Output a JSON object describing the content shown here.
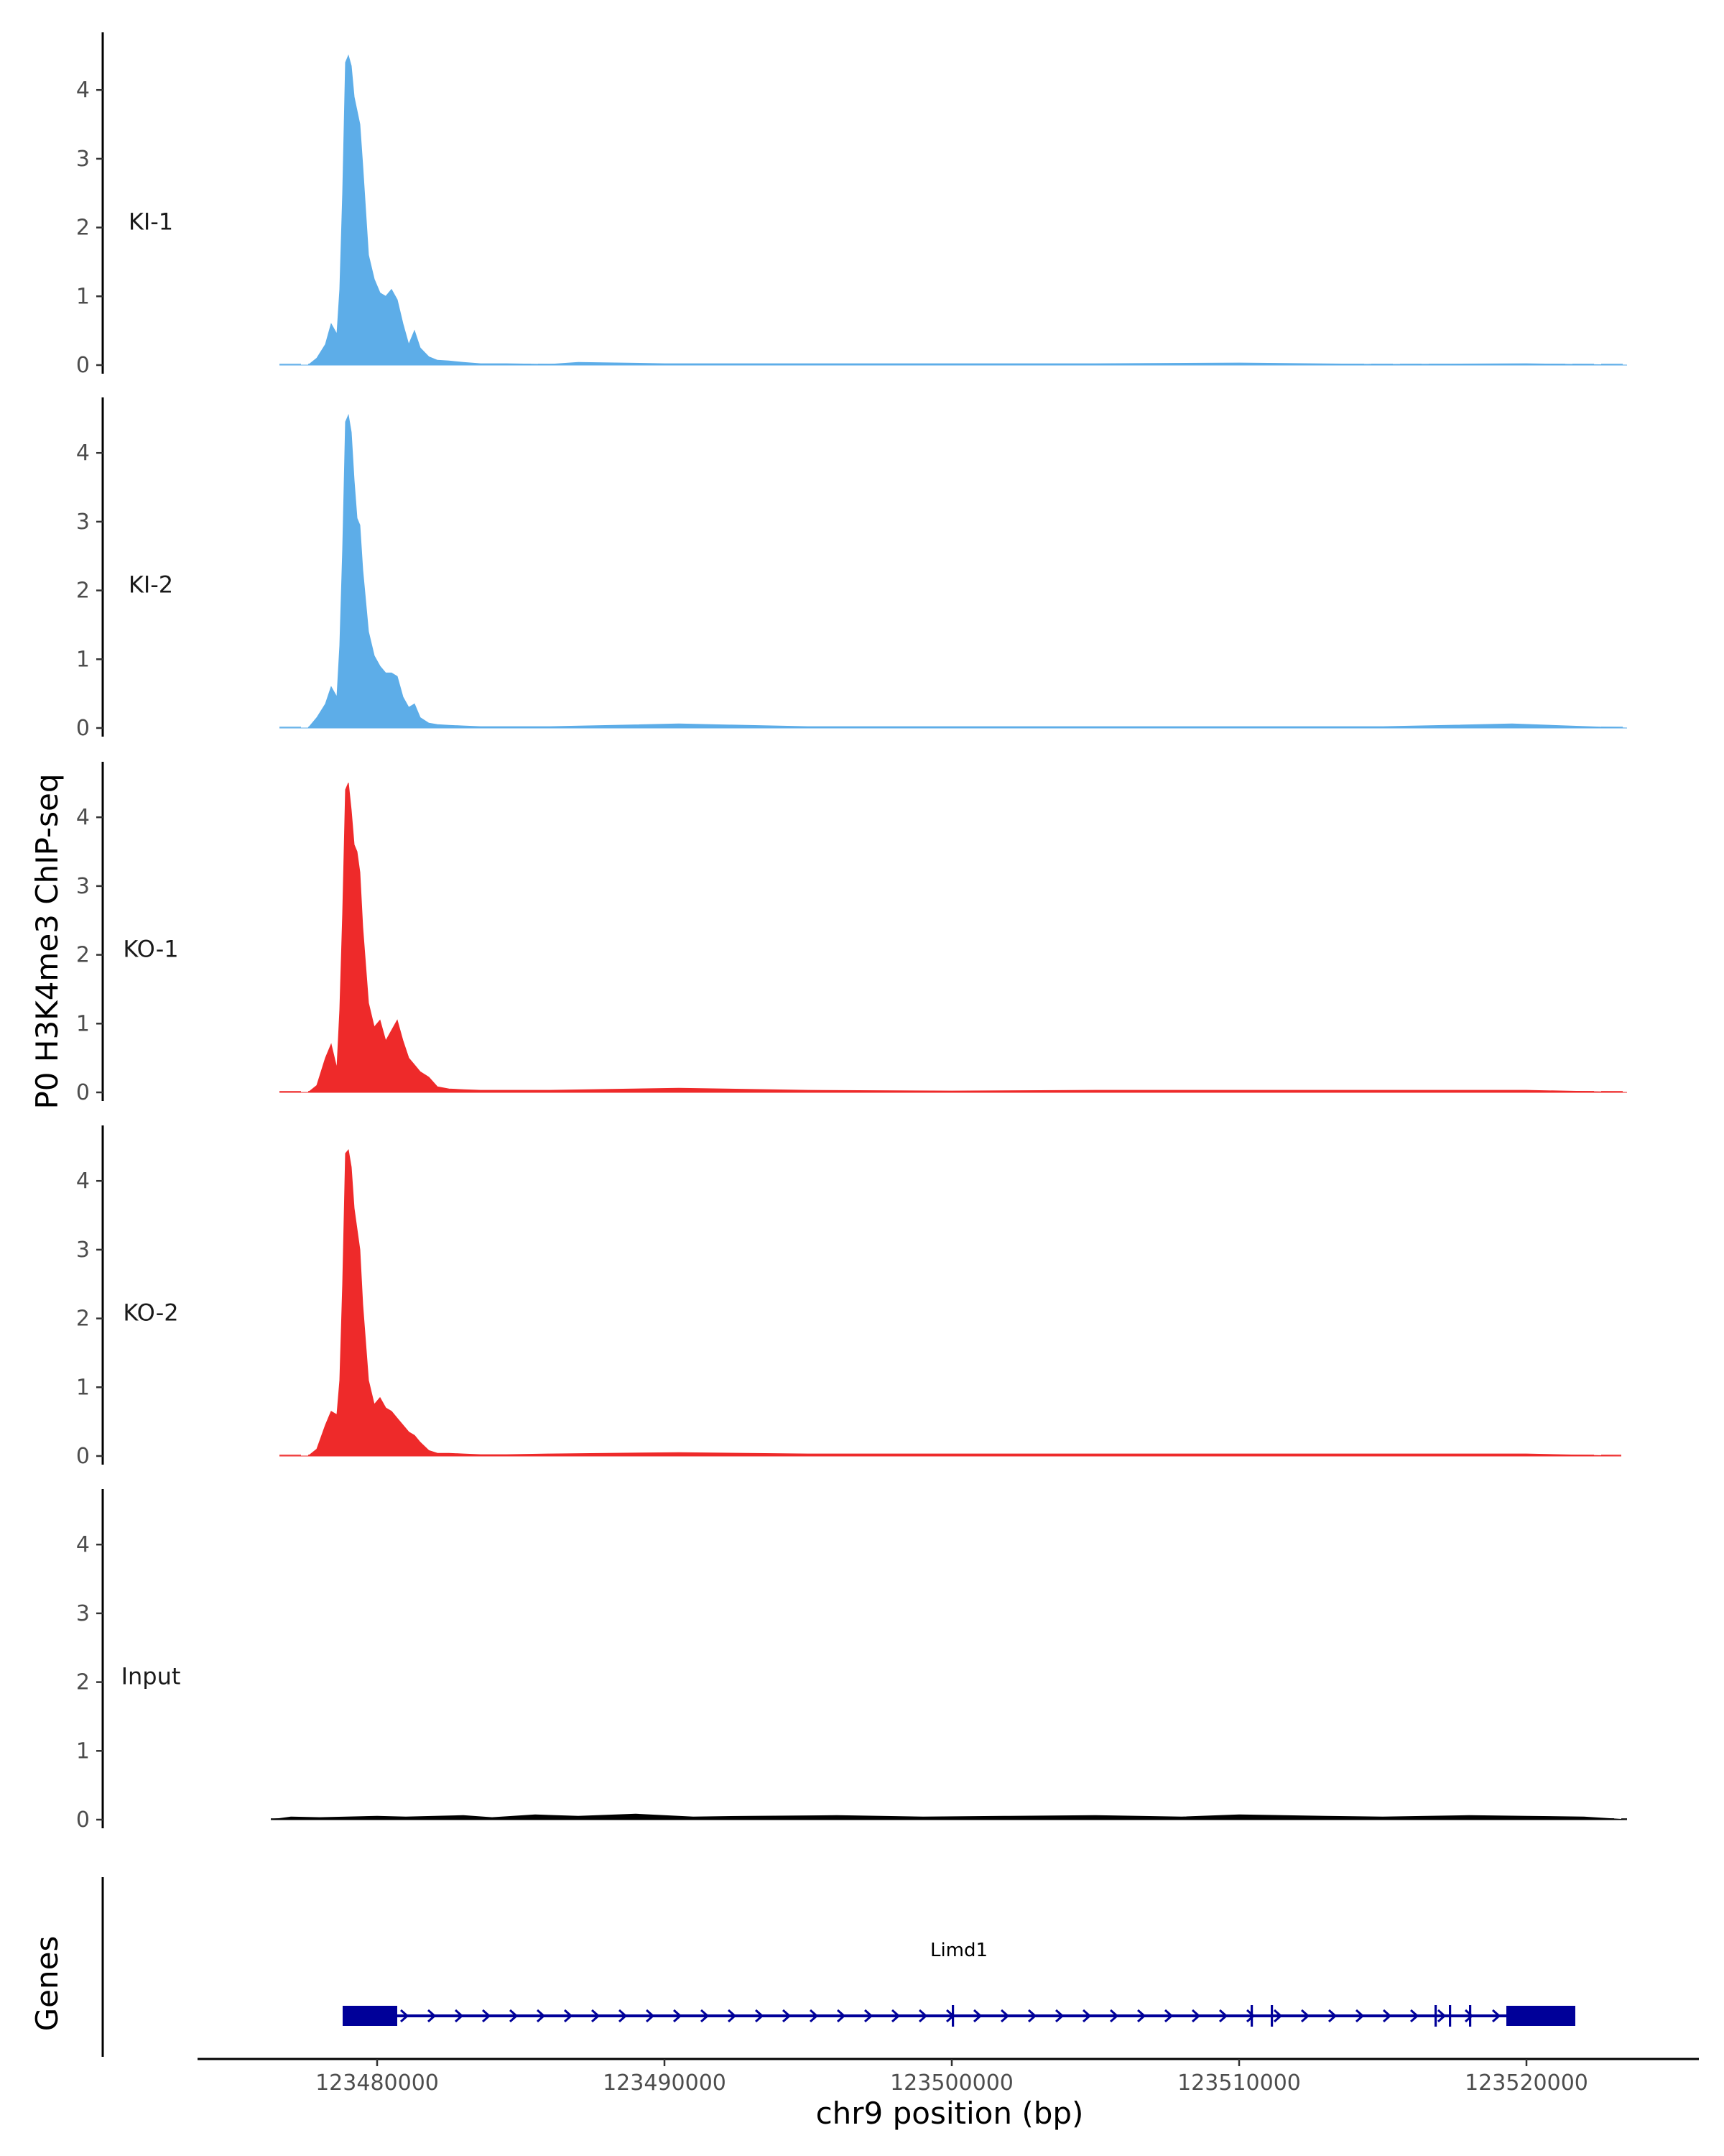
{
  "chart_data": {
    "type": "area",
    "ylabel": "P0 H3K4me3 ChIP-seq",
    "xlabel": "chr9 position (bp)",
    "gene_track_label": "Genes",
    "xlim": [
      123476000,
      123524500
    ],
    "ylim": [
      0,
      4.75
    ],
    "y_ticks": [
      {
        "value": 0,
        "label": "0"
      },
      {
        "value": 1,
        "label": "1"
      },
      {
        "value": 2,
        "label": "2"
      },
      {
        "value": 3,
        "label": "3"
      },
      {
        "value": 4,
        "label": "4"
      }
    ],
    "x_ticks": [
      {
        "value": 123480000,
        "label": "123480000"
      },
      {
        "value": 123490000,
        "label": "123490000"
      },
      {
        "value": 123500000,
        "label": "123500000"
      },
      {
        "value": 123510000,
        "label": "123510000"
      },
      {
        "value": 123520000,
        "label": "123520000"
      }
    ],
    "series": [
      {
        "name": "KI-1",
        "color": "#5DADE8",
        "x": [
          123476600,
          123477600,
          123477900,
          123478200,
          123478400,
          123478600,
          123478700,
          123478800,
          123478900,
          123479000,
          123479100,
          123479200,
          123479300,
          123479400,
          123479500,
          123479700,
          123479900,
          123480100,
          123480300,
          123480500,
          123480700,
          123480900,
          123481100,
          123481300,
          123481500,
          123481800,
          123482100,
          123482500,
          123483000,
          123483600,
          123484500,
          123486000,
          123487000,
          123490000,
          123495000,
          123500000,
          123505000,
          123510000,
          123515000,
          123520000,
          123523500
        ],
        "y": [
          0,
          0,
          0.1,
          0.3,
          0.6,
          0.45,
          1.1,
          2.5,
          4.4,
          4.5,
          4.35,
          3.9,
          3.7,
          3.5,
          2.9,
          1.6,
          1.25,
          1.05,
          1.0,
          1.1,
          0.95,
          0.6,
          0.3,
          0.5,
          0.25,
          0.12,
          0.07,
          0.06,
          0.04,
          0.02,
          0.02,
          0.01,
          0.04,
          0.02,
          0.02,
          0.02,
          0.02,
          0.03,
          0.01,
          0.02,
          0
        ]
      },
      {
        "name": "KI-2",
        "color": "#5DADE8",
        "x": [
          123476600,
          123477600,
          123477900,
          123478200,
          123478400,
          123478600,
          123478700,
          123478800,
          123478900,
          123479000,
          123479100,
          123479200,
          123479300,
          123479400,
          123479500,
          123479700,
          123479900,
          123480100,
          123480300,
          123480500,
          123480700,
          123480900,
          123481100,
          123481300,
          123481500,
          123481800,
          123482100,
          123482500,
          123483000,
          123483600,
          123484500,
          123486000,
          123490500,
          123495000,
          123500000,
          123505000,
          123510000,
          123515000,
          123519500,
          123523500
        ],
        "y": [
          0,
          0,
          0.15,
          0.35,
          0.6,
          0.45,
          1.2,
          2.6,
          4.45,
          4.55,
          4.3,
          3.6,
          3.05,
          2.95,
          2.3,
          1.4,
          1.05,
          0.9,
          0.8,
          0.8,
          0.75,
          0.45,
          0.3,
          0.35,
          0.15,
          0.07,
          0.05,
          0.04,
          0.03,
          0.02,
          0.02,
          0.02,
          0.06,
          0.02,
          0.02,
          0.02,
          0.02,
          0.02,
          0.06,
          0
        ]
      },
      {
        "name": "KO-1",
        "color": "#EE2A2A",
        "x": [
          123476600,
          123477600,
          123477900,
          123478200,
          123478400,
          123478600,
          123478700,
          123478800,
          123478900,
          123479000,
          123479100,
          123479200,
          123479300,
          123479400,
          123479500,
          123479700,
          123479900,
          123480100,
          123480300,
          123480500,
          123480700,
          123480900,
          123481100,
          123481300,
          123481500,
          123481800,
          123482100,
          123482500,
          123483000,
          123483600,
          123484500,
          123486000,
          123490500,
          123495000,
          123500000,
          123505000,
          123510000,
          123515000,
          123520000,
          123523500
        ],
        "y": [
          0,
          0,
          0.1,
          0.5,
          0.7,
          0.35,
          1.2,
          2.6,
          4.4,
          4.5,
          4.1,
          3.6,
          3.5,
          3.2,
          2.4,
          1.3,
          0.95,
          1.05,
          0.75,
          0.9,
          1.05,
          0.75,
          0.5,
          0.4,
          0.3,
          0.22,
          0.08,
          0.05,
          0.04,
          0.03,
          0.03,
          0.03,
          0.06,
          0.03,
          0.02,
          0.03,
          0.03,
          0.03,
          0.03,
          0
        ]
      },
      {
        "name": "KO-2",
        "color": "#EE2A2A",
        "x": [
          123476600,
          123477600,
          123477900,
          123478200,
          123478400,
          123478600,
          123478700,
          123478800,
          123478900,
          123479000,
          123479100,
          123479200,
          123479300,
          123479400,
          123479500,
          123479700,
          123479900,
          123480100,
          123480300,
          123480500,
          123480700,
          123480900,
          123481100,
          123481300,
          123481500,
          123481800,
          123482100,
          123482500,
          123483000,
          123483600,
          123484500,
          123486000,
          123490500,
          123495000,
          123500000,
          123505000,
          123510000,
          123515000,
          123520000,
          123523300
        ],
        "y": [
          0,
          0,
          0.1,
          0.45,
          0.65,
          0.6,
          1.1,
          2.5,
          4.4,
          4.45,
          4.2,
          3.6,
          3.3,
          3.0,
          2.2,
          1.1,
          0.75,
          0.85,
          0.7,
          0.65,
          0.55,
          0.45,
          0.35,
          0.3,
          0.2,
          0.08,
          0.04,
          0.04,
          0.03,
          0.02,
          0.02,
          0.03,
          0.05,
          0.03,
          0.03,
          0.03,
          0.03,
          0.03,
          0.03,
          0
        ]
      },
      {
        "name": "Input",
        "color": "#000000",
        "x": [
          123476300,
          123477000,
          123478000,
          123480000,
          123481000,
          123483000,
          123484000,
          123485500,
          123487000,
          123489000,
          123491000,
          123493000,
          123496000,
          123499000,
          123502000,
          123505000,
          123508000,
          123510000,
          123513000,
          123515000,
          123518000,
          123520000,
          123522000,
          123523500
        ],
        "y": [
          0,
          0.04,
          0.03,
          0.05,
          0.04,
          0.06,
          0.03,
          0.07,
          0.05,
          0.08,
          0.04,
          0.05,
          0.06,
          0.04,
          0.05,
          0.06,
          0.04,
          0.07,
          0.05,
          0.04,
          0.06,
          0.05,
          0.04,
          0
        ]
      }
    ],
    "gene": {
      "name": "Limd1",
      "color": "#000099",
      "strand": "+",
      "start": 123478800,
      "end": 123521700,
      "exons": [
        {
          "start": 123478800,
          "end": 123480700
        },
        {
          "start": 123500000,
          "end": 123500080
        },
        {
          "start": 123510400,
          "end": 123510480
        },
        {
          "start": 123511100,
          "end": 123511180
        },
        {
          "start": 123516800,
          "end": 123516880
        },
        {
          "start": 123517300,
          "end": 123517380
        },
        {
          "start": 123518000,
          "end": 123518080
        },
        {
          "start": 123519300,
          "end": 123521700
        }
      ]
    }
  }
}
